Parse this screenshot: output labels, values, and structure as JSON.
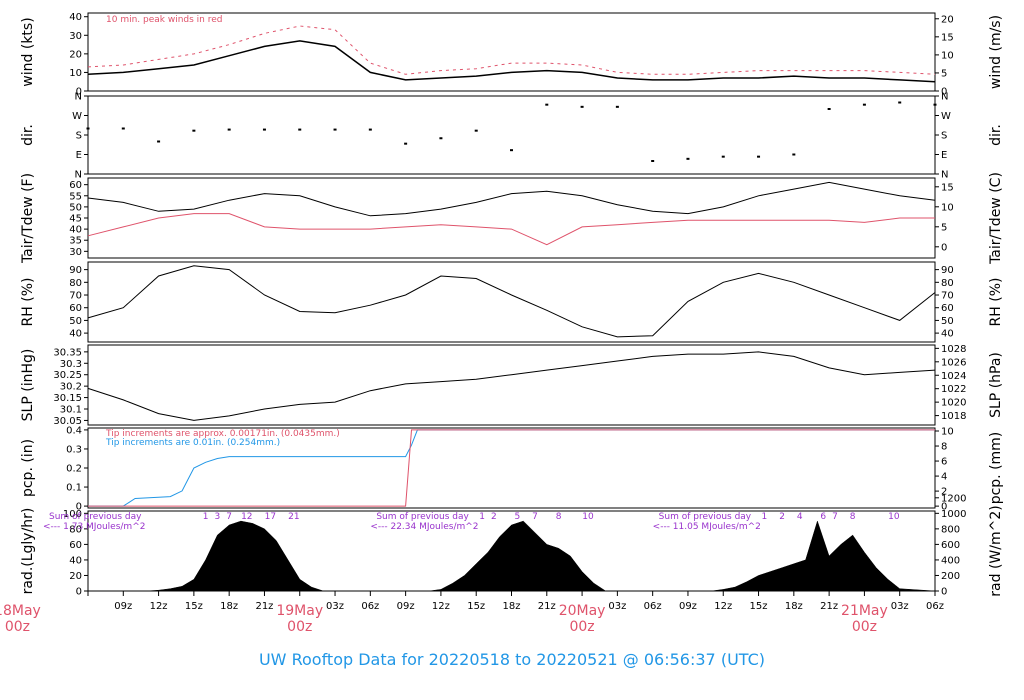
{
  "title": "UW Rooftop Data for 20220518  to  20220521 @ 06:56:37  (UTC)",
  "colors": {
    "wind": "#000000",
    "peak": "#DF536B",
    "dew": "#DF536B",
    "pcp": "#2297E6",
    "radtext": "#9933CC",
    "title": "#2297E6",
    "date": "#DF536B"
  },
  "x_axis": {
    "hour_ticks": [
      "09z",
      "12z",
      "15z",
      "18z",
      "21z",
      "03z",
      "06z",
      "09z",
      "12z",
      "15z",
      "18z",
      "21z",
      "03z",
      "06z",
      "09z",
      "12z",
      "15z",
      "18z",
      "21z",
      "03z",
      "06z"
    ],
    "day_labels": [
      {
        "line1": "18May",
        "line2": "00z",
        "hours": 0
      },
      {
        "line1": "19May",
        "line2": "00z",
        "hours": 24
      },
      {
        "line1": "20May",
        "line2": "00z",
        "hours": 48
      },
      {
        "line1": "21May",
        "line2": "00z",
        "hours": 72
      }
    ]
  },
  "chart_data": [
    {
      "type": "line",
      "id": "wind",
      "ylabel_left": "wind (kts)",
      "ylabel_right": "wind (m/s)",
      "yticks_left": [
        0,
        10,
        20,
        30,
        40
      ],
      "yticks_right": [
        0,
        5,
        10,
        15,
        20
      ],
      "ylim": [
        0,
        42
      ],
      "annotation": "10 min. peak winds in red",
      "x_hours": [
        6,
        9,
        12,
        15,
        18,
        21,
        24,
        27,
        30,
        33,
        36,
        39,
        42,
        45,
        48,
        51,
        54,
        57,
        60,
        63,
        66,
        69,
        72,
        75,
        78
      ],
      "series": [
        {
          "values": [
            9,
            10,
            12,
            14,
            19,
            24,
            27,
            24,
            10,
            6,
            7,
            8,
            10,
            11,
            10,
            7,
            6,
            6,
            7,
            7,
            8,
            7,
            7,
            6,
            5
          ]
        },
        {
          "values": [
            13,
            14,
            17,
            20,
            25,
            31,
            35,
            33,
            15,
            9,
            11,
            12,
            15,
            15,
            14,
            10,
            9,
            9,
            10,
            11,
            11,
            11,
            11,
            10,
            9
          ]
        }
      ]
    },
    {
      "type": "scatter",
      "id": "dir",
      "ylabel_left": "dir.",
      "ylabel_right": "dir.",
      "yticks_left": [
        "N",
        "E",
        "S",
        "W",
        "N"
      ],
      "yticks_right": [
        "N",
        "E",
        "S",
        "W",
        "N"
      ],
      "ylim": [
        0,
        360
      ],
      "x_hours": [
        6,
        9,
        12,
        15,
        18,
        21,
        24,
        27,
        30,
        33,
        36,
        39,
        42,
        45,
        48,
        51,
        54,
        57,
        60,
        63,
        66,
        69,
        72,
        75,
        78
      ],
      "series": [
        {
          "values": [
            210,
            210,
            150,
            200,
            205,
            205,
            205,
            205,
            205,
            140,
            165,
            200,
            110,
            320,
            310,
            310,
            60,
            70,
            80,
            80,
            90,
            300,
            320,
            330,
            320
          ]
        }
      ]
    },
    {
      "type": "line",
      "id": "temp",
      "ylabel_left": "Tair/Tdew (F)",
      "ylabel_right": "Tair/Tdew (C)",
      "yticks_left": [
        30,
        35,
        40,
        45,
        50,
        55,
        60
      ],
      "yticks_right": [
        0,
        5,
        10,
        15
      ],
      "ylim": [
        27,
        63
      ],
      "x_hours": [
        6,
        9,
        12,
        15,
        18,
        21,
        24,
        27,
        30,
        33,
        36,
        39,
        42,
        45,
        48,
        51,
        54,
        57,
        60,
        63,
        66,
        69,
        72,
        75,
        78
      ],
      "series": [
        {
          "values": [
            54,
            52,
            48,
            49,
            53,
            56,
            55,
            50,
            46,
            47,
            49,
            52,
            56,
            57,
            55,
            51,
            48,
            47,
            50,
            55,
            58,
            61,
            58,
            55,
            53
          ]
        },
        {
          "values": [
            37,
            41,
            45,
            47,
            47,
            41,
            40,
            40,
            40,
            41,
            42,
            41,
            40,
            33,
            41,
            42,
            43,
            44,
            44,
            44,
            44,
            44,
            43,
            45,
            45
          ]
        }
      ]
    },
    {
      "type": "line",
      "id": "rh",
      "ylabel_left": "RH (%)",
      "ylabel_right": "RH (%)",
      "yticks_left": [
        40,
        50,
        60,
        70,
        80,
        90
      ],
      "yticks_right": [
        40,
        50,
        60,
        70,
        80,
        90
      ],
      "ylim": [
        33,
        96
      ],
      "x_hours": [
        6,
        9,
        12,
        15,
        18,
        21,
        24,
        27,
        30,
        33,
        36,
        39,
        42,
        45,
        48,
        51,
        54,
        57,
        60,
        63,
        66,
        69,
        72,
        75,
        78
      ],
      "series": [
        {
          "values": [
            52,
            60,
            85,
            93,
            90,
            70,
            57,
            56,
            62,
            70,
            85,
            83,
            70,
            58,
            45,
            37,
            38,
            65,
            80,
            87,
            80,
            70,
            60,
            50,
            72
          ]
        }
      ]
    },
    {
      "type": "line",
      "id": "slp",
      "ylabel_left": "SLP (inHg)",
      "ylabel_right": "SLP (hPa)",
      "yticks_left": [
        30.05,
        30.1,
        30.15,
        30.2,
        30.25,
        30.3,
        30.35
      ],
      "yticks_right": [
        1018,
        1020,
        1022,
        1024,
        1026,
        1028
      ],
      "ylim": [
        30.03,
        30.38
      ],
      "x_hours": [
        6,
        9,
        12,
        15,
        18,
        21,
        24,
        27,
        30,
        33,
        36,
        39,
        42,
        45,
        48,
        51,
        54,
        57,
        60,
        63,
        66,
        69,
        72,
        75,
        78
      ],
      "series": [
        {
          "values": [
            30.19,
            30.14,
            30.08,
            30.05,
            30.07,
            30.1,
            30.12,
            30.13,
            30.18,
            30.21,
            30.22,
            30.23,
            30.25,
            30.27,
            30.29,
            30.31,
            30.33,
            30.34,
            30.34,
            30.35,
            30.33,
            30.28,
            30.25,
            30.26,
            30.27
          ]
        }
      ]
    },
    {
      "type": "line",
      "id": "pcp",
      "ylabel_left": "pcp. (in)",
      "ylabel_right": "pcp. (mm)",
      "yticks_left": [
        0,
        0.1,
        0.2,
        0.3,
        0.4
      ],
      "yticks_right": [
        0,
        2,
        4,
        6,
        8,
        10
      ],
      "ylim": [
        -0.01,
        0.41
      ],
      "annotations": [
        "Tip increments are approx. 0.00171in. (0.0435mm.)",
        "Tip increments are 0.01in. (0.254mm.)"
      ],
      "x_hours": [
        6,
        9,
        9.5,
        10,
        13,
        14,
        14.5,
        15,
        16,
        17,
        18,
        21,
        24,
        27,
        30,
        33,
        33.5,
        34,
        78
      ],
      "series": [
        {
          "values": [
            0,
            0,
            0.02,
            0.04,
            0.05,
            0.08,
            0.14,
            0.2,
            0.23,
            0.25,
            0.26,
            0.26,
            0.26,
            0.26,
            0.26,
            0.26,
            0.32,
            0.4,
            0.4
          ]
        },
        {
          "values": [
            0,
            0,
            0,
            0,
            0,
            0,
            0,
            0,
            0,
            0,
            0,
            0,
            0,
            0,
            0,
            0,
            0.4,
            0.4,
            0.4
          ]
        }
      ]
    },
    {
      "type": "area",
      "id": "rad",
      "ylabel_left": "rad.(Lgly/hr)",
      "ylabel_right": "rad (W/m^2)",
      "yticks_left": [
        0,
        20,
        40,
        60,
        80,
        100
      ],
      "yticks_right": [
        0,
        200,
        400,
        600,
        800,
        1000,
        1200
      ],
      "ylim": [
        0,
        103
      ],
      "annotations": [
        {
          "line1": "Sum of previous day",
          "line2": "<--- 1.73 MJoules/m^2",
          "hours": 6
        },
        {
          "line1": "Sum of previous day",
          "line2": "<--- 22.34 MJoules/m^2",
          "hours": 30
        },
        {
          "line1": "Sum of previous day",
          "line2": "<--- 11.05 MJoules/m^2",
          "hours": 54
        }
      ],
      "hour_marks": [
        {
          "label": "1",
          "hours": 16
        },
        {
          "label": "3",
          "hours": 17
        },
        {
          "label": "7",
          "hours": 18
        },
        {
          "label": "12",
          "hours": 19.5
        },
        {
          "label": "17",
          "hours": 21.5
        },
        {
          "label": "21",
          "hours": 23.5
        },
        {
          "label": "1",
          "hours": 39.5
        },
        {
          "label": "2",
          "hours": 40.5
        },
        {
          "label": "5",
          "hours": 42.5
        },
        {
          "label": "7",
          "hours": 44
        },
        {
          "label": "8",
          "hours": 46
        },
        {
          "label": "10",
          "hours": 48.5
        },
        {
          "label": "1",
          "hours": 63.5
        },
        {
          "label": "2",
          "hours": 65
        },
        {
          "label": "4",
          "hours": 66.5
        },
        {
          "label": "6",
          "hours": 68.5
        },
        {
          "label": "7",
          "hours": 69.5
        },
        {
          "label": "8",
          "hours": 71
        },
        {
          "label": "10",
          "hours": 74.5
        }
      ],
      "x_hours": [
        6,
        11,
        12,
        13,
        14,
        15,
        16,
        17,
        18,
        19,
        20,
        21,
        22,
        23,
        24,
        25,
        26,
        35,
        36,
        37,
        38,
        39,
        40,
        41,
        42,
        43,
        44,
        45,
        46,
        47,
        48,
        49,
        50,
        59,
        60,
        61,
        62,
        63,
        64,
        65,
        66,
        67,
        68,
        69,
        70,
        71,
        72,
        73,
        74,
        75,
        78
      ],
      "series": [
        {
          "values": [
            0,
            0,
            1,
            3,
            6,
            15,
            40,
            72,
            85,
            90,
            87,
            80,
            65,
            40,
            15,
            5,
            0,
            0,
            2,
            10,
            20,
            35,
            50,
            70,
            85,
            90,
            75,
            60,
            55,
            45,
            25,
            10,
            0,
            0,
            2,
            5,
            12,
            20,
            25,
            30,
            35,
            40,
            90,
            45,
            60,
            72,
            50,
            30,
            15,
            3,
            0
          ]
        }
      ]
    }
  ]
}
